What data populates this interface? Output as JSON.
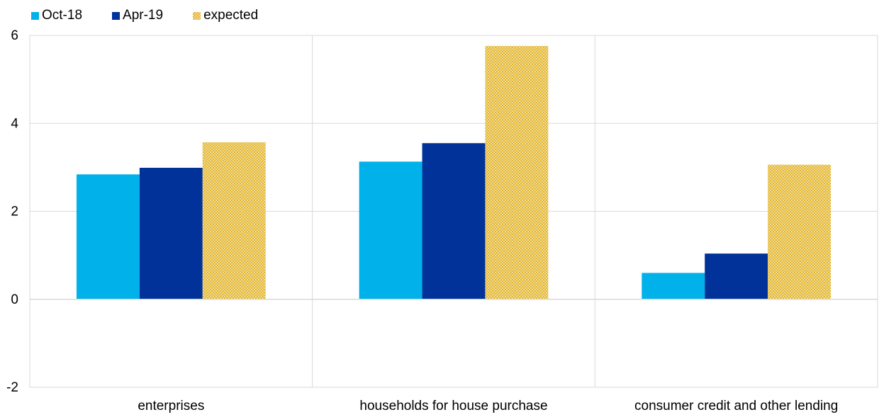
{
  "chart_data": {
    "type": "bar",
    "categories": [
      "enterprises",
      "households for house purchase",
      "consumer credit and other lending"
    ],
    "series": [
      {
        "name": "Oct-18",
        "values": [
          2.84,
          3.13,
          0.6
        ],
        "color": "#00b1ea",
        "pattern": "solid"
      },
      {
        "name": "Apr-19",
        "values": [
          2.99,
          3.55,
          1.04
        ],
        "color": "#003299",
        "pattern": "solid"
      },
      {
        "name": "expected",
        "values": [
          3.57,
          5.76,
          3.06
        ],
        "color": "#f5c842",
        "pattern": "checkered"
      }
    ],
    "yticks": [
      -2,
      0,
      2,
      4,
      6
    ],
    "ylim": [
      -2,
      6
    ],
    "grid": true,
    "legend_position": "top-left",
    "title": "",
    "xlabel": "",
    "ylabel": ""
  }
}
